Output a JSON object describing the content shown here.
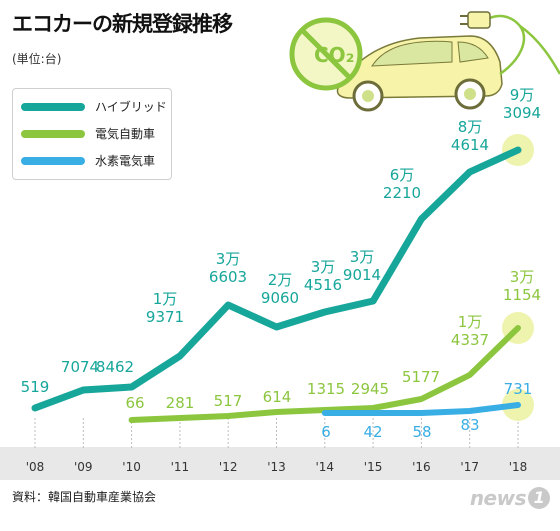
{
  "title": "エコカーの新規登録推移",
  "unit": "(単位:台)",
  "source": "資料：韓国自動車産業協会",
  "logo": {
    "text": "news",
    "badge": "1"
  },
  "illustration": {
    "label": "CO₂",
    "icons": [
      "no-co2-sign-icon",
      "electric-car-icon",
      "power-plug-icon"
    ]
  },
  "colors": {
    "hybrid": "#17a69a",
    "electric": "#8cc63f",
    "hydrogen": "#39aee4",
    "axis_band": "#e8e8e8",
    "highlight": "#ecf2a4"
  },
  "chart_data": {
    "type": "line",
    "categories": [
      "'08",
      "'09",
      "'10",
      "'11",
      "'12",
      "'13",
      "'14",
      "'15",
      "'16",
      "'17",
      "'18"
    ],
    "ylim": [
      0,
      100000
    ],
    "series": [
      {
        "name": "ハイブリッド",
        "key": "hybrid",
        "values": [
          519,
          7074,
          8462,
          19371,
          36603,
          29060,
          34516,
          39014,
          62210,
          84614,
          93094
        ],
        "labels": [
          "519",
          "7074",
          "8462",
          "1万\n9371",
          "3万\n6603",
          "2万\n9060",
          "3万\n4516",
          "3万\n9014",
          "6万\n2210",
          "8万\n4614",
          "9万\n3094"
        ]
      },
      {
        "name": "電気自動車",
        "key": "electric",
        "values": [
          null,
          null,
          66,
          281,
          517,
          614,
          1315,
          2945,
          5177,
          14337,
          31154
        ],
        "labels": [
          null,
          null,
          "66",
          "281",
          "517",
          "614",
          "1315",
          "2945",
          "5177",
          "1万\n4337",
          "3万\n1154"
        ]
      },
      {
        "name": "水素電気車",
        "key": "hydrogen",
        "values": [
          null,
          null,
          null,
          null,
          null,
          null,
          6,
          42,
          58,
          83,
          731
        ],
        "labels": [
          null,
          null,
          null,
          null,
          null,
          null,
          "6",
          "42",
          "58",
          "83",
          "731"
        ]
      }
    ]
  }
}
